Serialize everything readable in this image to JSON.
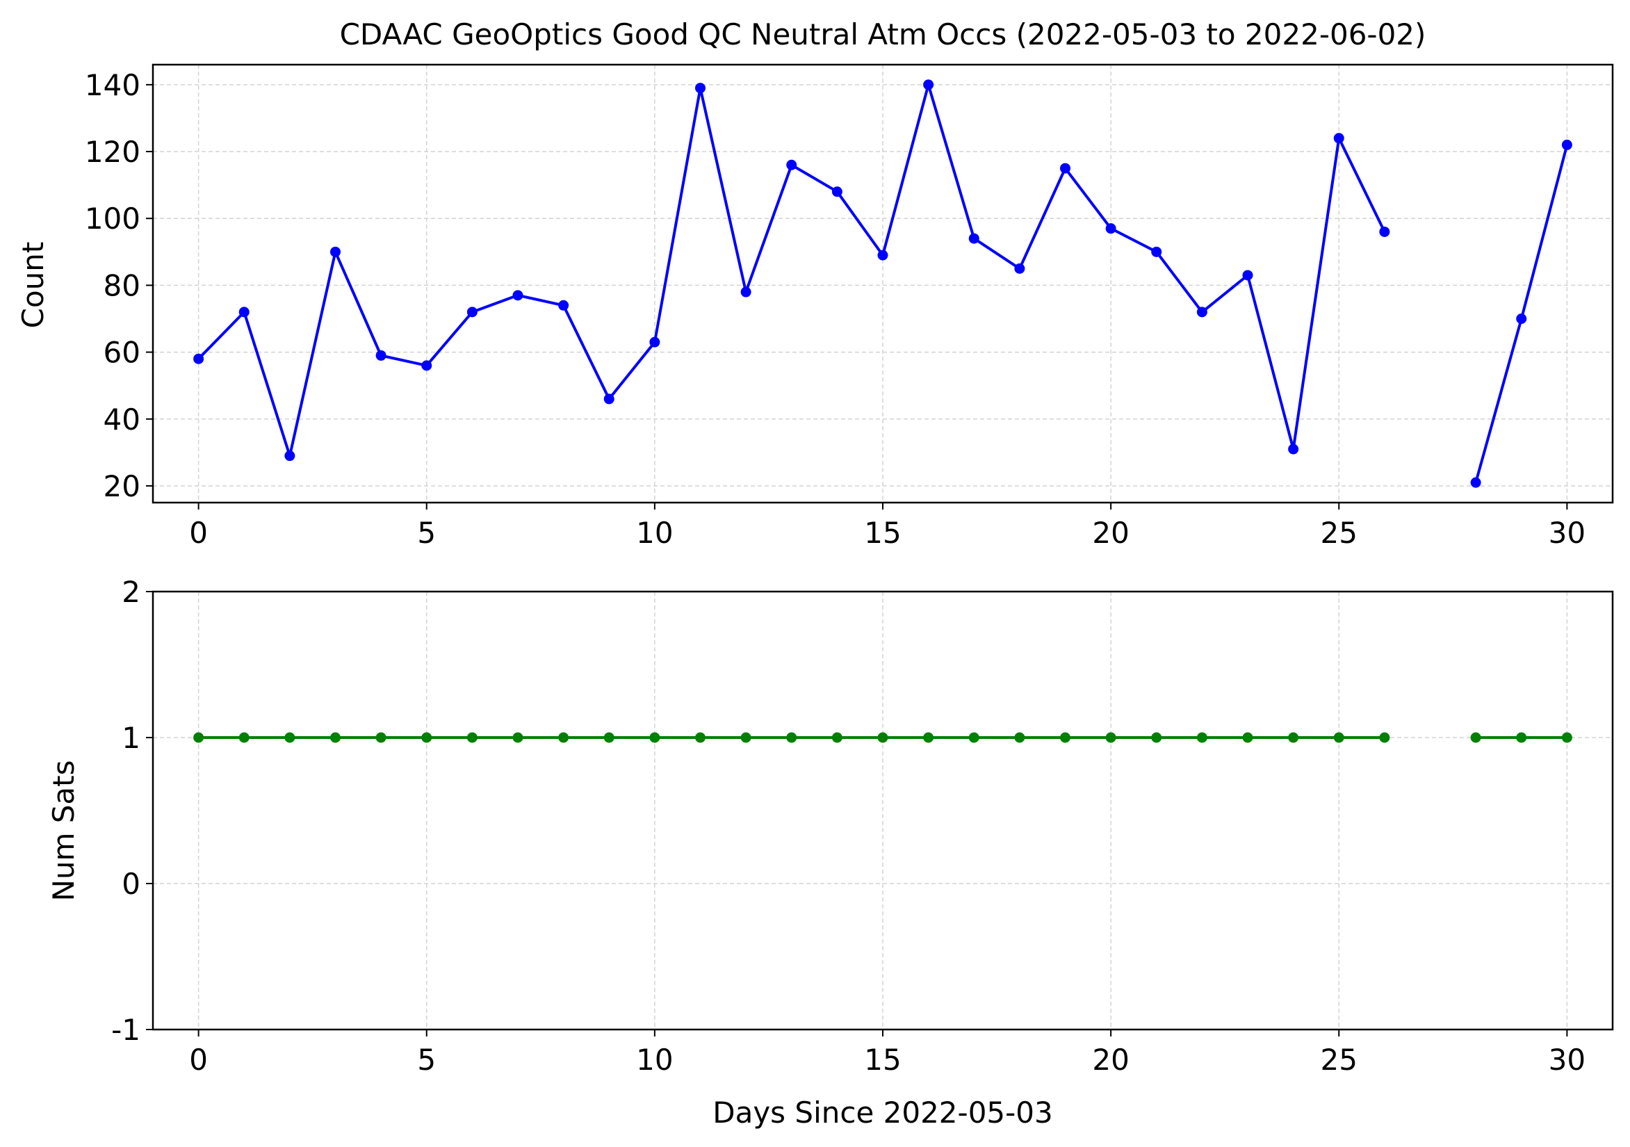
{
  "chart_data": [
    {
      "type": "line",
      "title": "CDAAC GeoOptics Good QC Neutral Atm Occs (2022-05-03 to 2022-06-02)",
      "xlabel": "",
      "ylabel": "Count",
      "xlim": [
        -1,
        31
      ],
      "ylim": [
        15,
        146
      ],
      "xticks": [
        0,
        5,
        10,
        15,
        20,
        25,
        30
      ],
      "yticks": [
        20,
        40,
        60,
        80,
        100,
        120,
        140
      ],
      "grid": true,
      "series": [
        {
          "color": "#0000ff",
          "marker": "circle",
          "segments": [
            {
              "x": [
                0,
                1,
                2,
                3,
                4,
                5,
                6,
                7,
                8,
                9,
                10,
                11,
                12,
                13,
                14,
                15,
                16,
                17,
                18,
                19,
                20,
                21,
                22,
                23,
                24,
                25,
                26
              ],
              "y": [
                58,
                72,
                29,
                90,
                59,
                56,
                72,
                77,
                74,
                46,
                63,
                139,
                78,
                116,
                108,
                89,
                140,
                94,
                85,
                115,
                97,
                90,
                72,
                83,
                31,
                124,
                96
              ]
            },
            {
              "x": [
                28,
                29,
                30
              ],
              "y": [
                21,
                70,
                122
              ]
            }
          ]
        }
      ]
    },
    {
      "type": "line",
      "title": "",
      "xlabel": "Days Since 2022-05-03",
      "ylabel": "Num Sats",
      "xlim": [
        -1,
        31
      ],
      "ylim": [
        -1,
        2
      ],
      "xticks": [
        0,
        5,
        10,
        15,
        20,
        25,
        30
      ],
      "yticks": [
        -1,
        0,
        1,
        2
      ],
      "grid": true,
      "series": [
        {
          "color": "#008000",
          "marker": "circle",
          "segments": [
            {
              "x": [
                0,
                1,
                2,
                3,
                4,
                5,
                6,
                7,
                8,
                9,
                10,
                11,
                12,
                13,
                14,
                15,
                16,
                17,
                18,
                19,
                20,
                21,
                22,
                23,
                24,
                25,
                26
              ],
              "y": [
                1,
                1,
                1,
                1,
                1,
                1,
                1,
                1,
                1,
                1,
                1,
                1,
                1,
                1,
                1,
                1,
                1,
                1,
                1,
                1,
                1,
                1,
                1,
                1,
                1,
                1,
                1
              ]
            },
            {
              "x": [
                28,
                29,
                30
              ],
              "y": [
                1,
                1,
                1
              ]
            }
          ]
        }
      ]
    }
  ]
}
